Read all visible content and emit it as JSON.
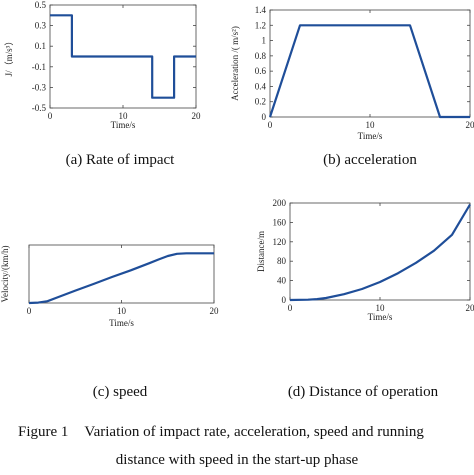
{
  "chart_data": [
    {
      "type": "line",
      "caption": "(a) Rate of impact",
      "xlabel": "Time/s",
      "ylabel": "J/（m/s³）",
      "xlim": [
        0,
        20
      ],
      "ylim": [
        -0.5,
        0.5
      ],
      "xticks": [
        0,
        10,
        20
      ],
      "yticks": [
        0.5,
        0.3,
        0.1,
        -0.1,
        -0.3,
        -0.5
      ],
      "color": "#1f4e99",
      "series": [
        {
          "x": [
            0,
            3,
            3,
            14,
            14,
            17,
            17,
            20
          ],
          "y": [
            0.4,
            0.4,
            0,
            0,
            -0.4,
            -0.4,
            0,
            0
          ]
        }
      ]
    },
    {
      "type": "line",
      "caption": "(b) acceleration",
      "xlabel": "Time/s",
      "ylabel": "Acceleration /( m/s²)",
      "xlim": [
        0,
        20
      ],
      "ylim": [
        0,
        1.4
      ],
      "xticks": [
        0,
        10,
        20
      ],
      "yticks": [
        0,
        0.2,
        0.4,
        0.6,
        0.8,
        1,
        1.2,
        1.4
      ],
      "color": "#1f4e99",
      "series": [
        {
          "x": [
            0,
            3,
            14,
            17,
            20
          ],
          "y": [
            0,
            1.2,
            1.2,
            0,
            0
          ]
        }
      ]
    },
    {
      "type": "line",
      "caption": "(c) speed",
      "xlabel": "Time/s",
      "ylabel": "Velocity/(km/h)",
      "xlim": [
        0,
        20
      ],
      "ylim": [
        0,
        70
      ],
      "xticks": [
        0,
        10,
        20
      ],
      "yticks": [],
      "color": "#1f4e99",
      "series": [
        {
          "x": [
            0,
            1,
            2,
            3,
            5,
            7,
            9,
            11,
            13,
            14,
            15,
            16,
            17,
            20
          ],
          "y": [
            0,
            0.5,
            2.2,
            6.5,
            15,
            23,
            31.5,
            39.5,
            48,
            52.5,
            56.7,
            59.4,
            60,
            60
          ]
        }
      ]
    },
    {
      "type": "line",
      "caption": "(d) Distance of operation",
      "xlabel": "Time/s",
      "ylabel": "Distance/m",
      "xlim": [
        0,
        20
      ],
      "ylim": [
        0,
        200
      ],
      "xticks": [
        0,
        10,
        20
      ],
      "xticklabels": [
        "0",
        "10",
        "20"
      ],
      "yticks": [
        0,
        40,
        80,
        120,
        160,
        200
      ],
      "color": "#1f4e99",
      "series": [
        {
          "x": [
            0,
            2,
            3,
            4,
            6,
            8,
            10,
            12,
            14,
            16,
            18,
            20
          ],
          "y": [
            0,
            0.6,
            1.9,
            4.2,
            11.9,
            22.7,
            37.1,
            55.2,
            76.6,
            101.7,
            134.5,
            197
          ]
        }
      ]
    }
  ],
  "figure_caption": {
    "label": "Figure 1",
    "line1": "Variation of impact rate, acceleration, speed and running",
    "line2": "distance with speed in the start-up phase"
  }
}
